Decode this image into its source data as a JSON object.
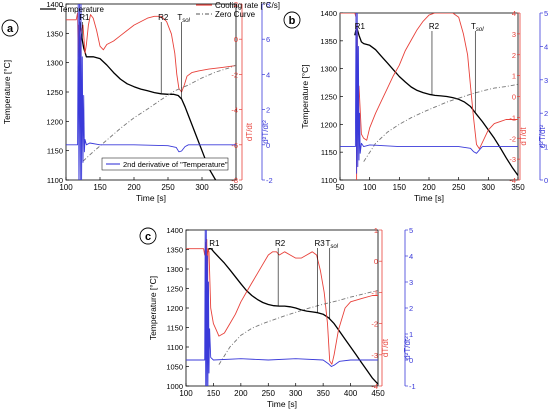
{
  "chart_data": [
    {
      "panel_label": "a",
      "type": "line",
      "xlabel": "Time [s]",
      "ylabel_left": "Temperature [°C]",
      "ylabel_right1": "dT/dt",
      "ylabel_right2": "d²T/dt²",
      "xlim": [
        100,
        350
      ],
      "xticks": [
        100,
        150,
        200,
        250,
        300,
        350
      ],
      "ylim_left": [
        1100,
        1400
      ],
      "yticks_left": [
        1100,
        1150,
        1200,
        1250,
        1300,
        1350,
        1400
      ],
      "ylim_right1": [
        -8,
        2
      ],
      "yticks_right1": [
        -8,
        -6,
        -4,
        -2,
        0,
        2
      ],
      "ylim_right2": [
        -2,
        8
      ],
      "yticks_right2": [
        -2,
        0,
        2,
        4,
        6,
        8
      ],
      "legend": [
        "Temperature",
        "Cooling rate [°C/s]",
        "Zero Curve",
        "2nd derivative of \"Temperature\""
      ],
      "annotations": [
        {
          "text": "R1",
          "x": 124
        },
        {
          "text": "R2",
          "x": 240
        },
        {
          "text": "Tsol",
          "x": 270
        }
      ],
      "series": [
        {
          "name": "Temperature",
          "axis": "left",
          "color": "#000000",
          "x": [
            120,
            123,
            126,
            130,
            140,
            150,
            160,
            170,
            180,
            190,
            200,
            210,
            220,
            230,
            240,
            250,
            258,
            265,
            270,
            275,
            280,
            290,
            300,
            310,
            320
          ],
          "y": [
            1370,
            1345,
            1325,
            1310,
            1310,
            1307,
            1296,
            1283,
            1272,
            1264,
            1259,
            1255,
            1252,
            1249,
            1247,
            1246,
            1246,
            1244,
            1238,
            1225,
            1210,
            1180,
            1150,
            1120,
            1100
          ]
        },
        {
          "name": "Cooling rate [°C/s]",
          "axis": "right1",
          "color": "#e8413a",
          "x": [
            100,
            115,
            117,
            118,
            119,
            120,
            121,
            123,
            125,
            128,
            130,
            133,
            136,
            140,
            145,
            150,
            155,
            160,
            170,
            180,
            190,
            200,
            210,
            220,
            230,
            240,
            248,
            255,
            260,
            263,
            266,
            270,
            274,
            278,
            285,
            295,
            310,
            330,
            350
          ],
          "y": [
            1.1,
            1.1,
            1.5,
            -1,
            0.8,
            -2.5,
            0,
            0.5,
            0.8,
            -0.8,
            -0.3,
            0.8,
            1.4,
            1.2,
            0.5,
            -0.4,
            -0.6,
            -0.3,
            -0.1,
            0.2,
            0.5,
            0.8,
            1.0,
            1.2,
            1.3,
            1.3,
            1.0,
            0.3,
            -0.8,
            -2.0,
            -2.8,
            -3.0,
            -2.6,
            -2.1,
            -1.9,
            -1.8,
            -1.7,
            -1.6,
            -1.5
          ]
        },
        {
          "name": "Zero Curve",
          "axis": "left",
          "color": "#777777",
          "x": [
            125,
            140,
            160,
            180,
            200,
            220,
            240,
            260,
            280,
            300,
            320,
            340,
            350
          ],
          "y": [
            1132,
            1148,
            1168,
            1188,
            1206,
            1221,
            1237,
            1252,
            1262,
            1274,
            1284,
            1291,
            1296
          ]
        },
        {
          "name": "2nd derivative of \"Temperature\"",
          "axis": "right2",
          "color": "#3a3ad9",
          "x": [
            100,
            117,
            118,
            119,
            120,
            121,
            122,
            123,
            124,
            125,
            126,
            127,
            128,
            130,
            135,
            150,
            200,
            250,
            262,
            266,
            270,
            275,
            280,
            300,
            350
          ],
          "y": [
            0,
            0,
            8,
            -2,
            8,
            -2,
            8,
            -2,
            5,
            -1,
            2.8,
            -0.4,
            0.3,
            0,
            0.1,
            0,
            0,
            -0.05,
            -0.15,
            -0.4,
            -0.35,
            -0.1,
            0,
            0,
            0
          ]
        }
      ]
    },
    {
      "panel_label": "b",
      "type": "line",
      "xlabel": "Time [s]",
      "ylabel_left": "Temperature [°C]",
      "ylabel_right1": "dT/dt",
      "ylabel_right2": "d²T/dt²",
      "xlim": [
        50,
        350
      ],
      "xticks": [
        50,
        100,
        150,
        200,
        250,
        300,
        350
      ],
      "ylim_left": [
        1100,
        1400
      ],
      "yticks_left": [
        1100,
        1150,
        1200,
        1250,
        1300,
        1350,
        1400
      ],
      "ylim_right1": [
        -4,
        4
      ],
      "yticks_right1": [
        -4,
        -3,
        -2,
        -1,
        0,
        1,
        2,
        3,
        4
      ],
      "ylim_right2": [
        0,
        5
      ],
      "yticks_right2": [
        0,
        1,
        2,
        3,
        4,
        5
      ],
      "annotations": [
        {
          "text": "R1",
          "x": 80
        },
        {
          "text": "R2",
          "x": 205
        },
        {
          "text": "Tsol",
          "x": 278
        }
      ],
      "series": [
        {
          "name": "Temperature",
          "axis": "left",
          "color": "#000000",
          "x": [
            75,
            78,
            82,
            86,
            90,
            100,
            110,
            120,
            130,
            140,
            150,
            160,
            170,
            180,
            190,
            200,
            210,
            220,
            230,
            240,
            250,
            260,
            270,
            280,
            290,
            300,
            310,
            320,
            330,
            340,
            350
          ],
          "y": [
            1360,
            1375,
            1360,
            1348,
            1345,
            1342,
            1334,
            1322,
            1310,
            1298,
            1286,
            1276,
            1267,
            1261,
            1257,
            1254,
            1252,
            1251,
            1250,
            1248,
            1245,
            1240,
            1232,
            1218,
            1205,
            1190,
            1175,
            1158,
            1140,
            1123,
            1108
          ]
        },
        {
          "name": "Cooling rate [°C/s]",
          "axis": "right1",
          "color": "#e8413a",
          "x": [
            50,
            75,
            77,
            78,
            79,
            80,
            82,
            86,
            90,
            95,
            100,
            110,
            120,
            130,
            140,
            150,
            160,
            170,
            180,
            190,
            200,
            210,
            220,
            230,
            240,
            250,
            258,
            265,
            270,
            275,
            280,
            285,
            290,
            300,
            310,
            320,
            330,
            340,
            350
          ],
          "y": [
            4,
            4,
            3.8,
            -4,
            3.5,
            -1,
            0.5,
            -1.8,
            -2.0,
            -2.1,
            -1.5,
            -0.8,
            -0.2,
            0.4,
            1.0,
            1.5,
            2.2,
            2.7,
            3.2,
            3.6,
            3.9,
            4.0,
            4.0,
            4.0,
            4.0,
            3.8,
            3.0,
            2.0,
            0.5,
            -1.0,
            -2.3,
            -2.5,
            -2.2,
            -1.6,
            -1.3,
            -1.2,
            -1.1,
            -1.1,
            -1.1
          ]
        },
        {
          "name": "Zero Curve",
          "axis": "left",
          "color": "#777777",
          "x": [
            90,
            110,
            130,
            150,
            170,
            190,
            210,
            230,
            250,
            270,
            290,
            310,
            330,
            350
          ],
          "y": [
            1133,
            1166,
            1186,
            1200,
            1212,
            1222,
            1231,
            1240,
            1247,
            1254,
            1260,
            1265,
            1268,
            1272
          ]
        },
        {
          "name": "2nd derivative of \"Temperature\"",
          "axis": "right2",
          "color": "#3a3ad9",
          "x": [
            50,
            76,
            77,
            78,
            79,
            80,
            81,
            82,
            83,
            84,
            86,
            90,
            100,
            150,
            200,
            250,
            270,
            275,
            280,
            285,
            290,
            300,
            350
          ],
          "y": [
            1.0,
            1.0,
            5,
            0.2,
            5,
            0.4,
            4,
            0.6,
            2,
            0.8,
            1.1,
            1.0,
            1.05,
            1.0,
            1.0,
            1.0,
            0.95,
            0.85,
            0.8,
            0.9,
            1.0,
            1.0,
            1.0
          ]
        }
      ]
    },
    {
      "panel_label": "c",
      "type": "line",
      "xlabel": "Time [s]",
      "ylabel_left": "Temperature [°C]",
      "ylabel_right1": "dT/dt",
      "ylabel_right2": "d²T/dt²",
      "xlim": [
        100,
        450
      ],
      "xticks": [
        100,
        150,
        200,
        250,
        300,
        350,
        400,
        450
      ],
      "ylim_left": [
        1000,
        1400
      ],
      "yticks_left": [
        1000,
        1050,
        1100,
        1150,
        1200,
        1250,
        1300,
        1350,
        1400
      ],
      "ylim_right1": [
        -4,
        1
      ],
      "yticks_right1": [
        -4,
        -3,
        -2,
        -1,
        0,
        1
      ],
      "ylim_right2": [
        -1,
        5
      ],
      "yticks_right2": [
        -1,
        0,
        1,
        2,
        3,
        4,
        5
      ],
      "annotations": [
        {
          "text": "R1",
          "x": 148
        },
        {
          "text": "R2",
          "x": 268
        },
        {
          "text": "R3",
          "x": 340
        },
        {
          "text": "Tsol",
          "x": 362
        }
      ],
      "series": [
        {
          "name": "Temperature",
          "axis": "left",
          "color": "#000000",
          "x": [
            138,
            142,
            146,
            150,
            160,
            170,
            180,
            190,
            200,
            210,
            220,
            230,
            240,
            250,
            260,
            270,
            280,
            290,
            300,
            310,
            320,
            330,
            340,
            350,
            360,
            370,
            380,
            390,
            400,
            410,
            420,
            430,
            440,
            450
          ],
          "y": [
            1340,
            1352,
            1352,
            1345,
            1330,
            1315,
            1298,
            1280,
            1262,
            1245,
            1232,
            1222,
            1214,
            1209,
            1206,
            1205,
            1205,
            1203,
            1200,
            1195,
            1192,
            1190,
            1188,
            1184,
            1175,
            1160,
            1140,
            1120,
            1100,
            1080,
            1060,
            1040,
            1020,
            1005
          ]
        },
        {
          "name": "Cooling rate [°C/s]",
          "axis": "right1",
          "color": "#e8413a",
          "x": [
            100,
            132,
            134,
            136,
            137,
            138,
            139,
            140,
            142,
            145,
            150,
            155,
            160,
            170,
            180,
            190,
            200,
            210,
            220,
            230,
            240,
            250,
            258,
            265,
            270,
            280,
            290,
            300,
            310,
            320,
            330,
            338,
            345,
            352,
            358,
            362,
            366,
            370,
            378,
            390,
            400,
            420,
            440,
            450
          ],
          "y": [
            0.4,
            0.4,
            0.2,
            0.6,
            -3,
            0.7,
            -2,
            0.4,
            0.3,
            -1.5,
            -2.0,
            -2.2,
            -2.4,
            -2.3,
            -2.0,
            -1.7,
            -1.3,
            -1.0,
            -0.7,
            -0.4,
            -0.1,
            0.2,
            0.3,
            0.3,
            0.2,
            0.3,
            0.2,
            0.1,
            0.1,
            0.2,
            0.3,
            0.2,
            -0.3,
            -1.0,
            -2.0,
            -3.2,
            -3.3,
            -3.0,
            -2.2,
            -1.5,
            -1.3,
            -1.2,
            -1.1,
            -1.1
          ]
        },
        {
          "name": "Zero Curve",
          "axis": "left",
          "color": "#777777",
          "x": [
            160,
            180,
            200,
            220,
            240,
            260,
            280,
            300,
            320,
            340,
            360,
            380,
            400,
            420,
            450
          ],
          "y": [
            1055,
            1100,
            1130,
            1148,
            1160,
            1170,
            1180,
            1189,
            1198,
            1206,
            1213,
            1220,
            1228,
            1235,
            1245
          ]
        },
        {
          "name": "2nd derivative of \"Temperature\"",
          "axis": "right2",
          "color": "#3a3ad9",
          "x": [
            100,
            134,
            135,
            136,
            137,
            138,
            139,
            140,
            141,
            142,
            143,
            145,
            150,
            200,
            250,
            300,
            350,
            360,
            365,
            370,
            380,
            400,
            450
          ],
          "y": [
            0,
            0,
            5,
            -1,
            5,
            -1,
            4,
            -1,
            3,
            -0.5,
            1.2,
            0.1,
            0,
            0.05,
            0,
            0.05,
            0,
            -0.15,
            -0.25,
            -0.2,
            -0.05,
            0,
            0
          ]
        }
      ]
    }
  ]
}
